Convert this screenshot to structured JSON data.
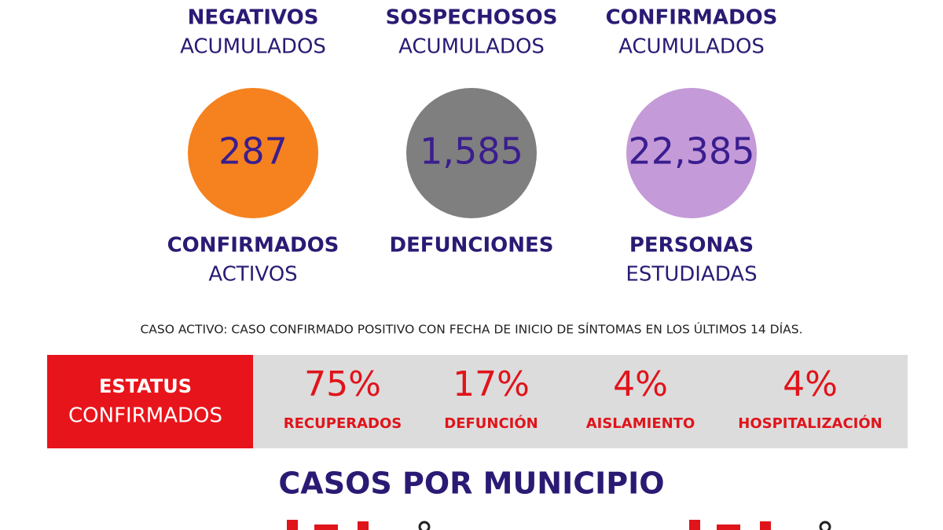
{
  "header_labels": [
    {
      "bold": "NEGATIVOS",
      "normal": "ACUMULADOS"
    },
    {
      "bold": "SOSPECHOSOS",
      "normal": "ACUMULADOS"
    },
    {
      "bold": "CONFIRMADOS",
      "normal": "ACUMULADOS"
    }
  ],
  "circles": [
    {
      "value": "287",
      "color": "#f5821f",
      "label_bold": "CONFIRMADOS",
      "label_normal": "ACTIVOS"
    },
    {
      "value": "1,585",
      "color": "#7f7f7f",
      "label_bold": "DEFUNCIONES",
      "label_normal": ""
    },
    {
      "value": "22,385",
      "color": "#c49ad8",
      "label_bold": "PERSONAS",
      "label_normal": "ESTUDIADAS"
    }
  ],
  "note": "CASO ACTIVO: CASO CONFIRMADO POSITIVO CON FECHA DE INICIO DE SÍNTOMAS EN LOS ÚLTIMOS 14 DÍAS.",
  "status": {
    "title_bold": "ESTATUS",
    "title_normal": "CONFIRMADOS",
    "items": [
      {
        "value": "75%",
        "label": "RECUPERADOS"
      },
      {
        "value": "17%",
        "label": "DEFUNCIÓN"
      },
      {
        "value": "4%",
        "label": "AISLAMIENTO"
      },
      {
        "value": "4%",
        "label": "HOSPITALIZACIÓN"
      }
    ]
  },
  "section_title": "CASOS POR MUNICIPIO"
}
